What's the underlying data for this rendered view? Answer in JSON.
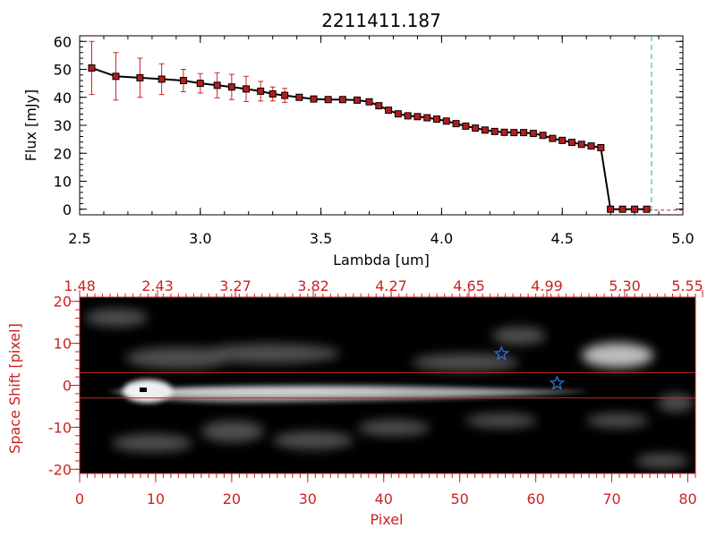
{
  "colors": {
    "spectrum_axes": "#000000",
    "image_axes": "#cc2222",
    "data_line": "#000000",
    "marker": "#b71c1c",
    "errorbar": "#cc2222",
    "cutoff_line": "#2aa3b5",
    "star": "#2f6fd6",
    "background": "#ffffff"
  },
  "chart_data": [
    {
      "type": "line",
      "title": "2211411.187",
      "xlabel": "Lambda [um]",
      "ylabel": "Flux [mJy]",
      "xlim": [
        2.5,
        5.0
      ],
      "ylim": [
        -2,
        62
      ],
      "xticks": [
        "2.5",
        "3.0",
        "3.5",
        "4.0",
        "4.5",
        "5.0"
      ],
      "yticks": [
        "0",
        "10",
        "20",
        "30",
        "40",
        "50",
        "60"
      ],
      "grid": false,
      "series": [
        {
          "x": [
            2.55,
            2.65,
            2.75,
            2.84,
            2.93,
            3.0,
            3.07,
            3.13,
            3.19,
            3.25,
            3.3,
            3.35,
            3.41,
            3.47,
            3.53,
            3.59,
            3.65,
            3.7,
            3.74,
            3.78,
            3.82,
            3.86,
            3.9,
            3.94,
            3.98,
            4.02,
            4.06,
            4.1,
            4.14,
            4.18,
            4.22,
            4.26,
            4.3,
            4.34,
            4.38,
            4.42,
            4.46,
            4.5,
            4.54,
            4.58,
            4.62,
            4.66,
            4.7,
            4.75,
            4.8,
            4.85
          ],
          "y": [
            50.5,
            47.5,
            47.0,
            46.5,
            46.0,
            45.0,
            44.3,
            43.7,
            43.0,
            42.2,
            41.2,
            40.7,
            40.0,
            39.4,
            39.2,
            39.2,
            39.0,
            38.4,
            37.0,
            35.4,
            34.1,
            33.4,
            33.1,
            32.7,
            32.2,
            31.5,
            30.6,
            29.7,
            29.0,
            28.3,
            27.8,
            27.5,
            27.4,
            27.4,
            27.1,
            26.4,
            25.3,
            24.6,
            23.9,
            23.2,
            22.6,
            22.0,
            0.0,
            0.0,
            0.0,
            0.0
          ],
          "yerr": [
            9.5,
            8.5,
            7.0,
            5.5,
            4.0,
            3.5,
            4.5,
            4.5,
            4.5,
            3.5,
            2.5,
            2.5,
            1.0,
            0.5,
            0.5,
            0.5,
            0.5,
            0.5,
            0.5,
            0.5,
            0.5,
            0.5,
            0.5,
            0.5,
            0.5,
            0.5,
            0.5,
            0.5,
            0.5,
            0.5,
            0.5,
            0.5,
            0.5,
            0.5,
            0.5,
            0.5,
            0.5,
            0.5,
            0.5,
            0.5,
            0.5,
            0.5,
            0.0,
            0.0,
            0.0,
            0.0
          ]
        }
      ],
      "vline_x": 4.87
    },
    {
      "type": "heatmap",
      "xlabel": "Pixel",
      "ylabel": "Space Shift [pixel]",
      "xlim": [
        0,
        81
      ],
      "ylim": [
        -21,
        21
      ],
      "xticks": [
        "0",
        "10",
        "20",
        "30",
        "40",
        "50",
        "60",
        "70",
        "80"
      ],
      "yticks": [
        "-20",
        "-10",
        "0",
        "10",
        "20"
      ],
      "top_axis_labels": [
        "1.48",
        "2.43",
        "3.27",
        "3.82",
        "4.27",
        "4.65",
        "4.99",
        "5.30",
        "5.55"
      ],
      "hlines_y": [
        3,
        -3
      ],
      "stars": [
        {
          "x": 55.5,
          "y": 7.5
        },
        {
          "x": 62.8,
          "y": 0.5
        }
      ]
    }
  ]
}
